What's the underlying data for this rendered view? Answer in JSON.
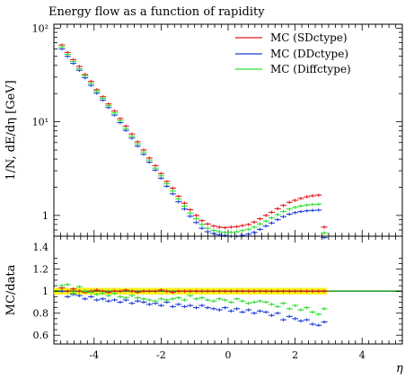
{
  "chart_data": [
    {
      "type": "scatter",
      "title": "Energy flow as a function of rapidity",
      "xlabel": "",
      "ylabel": "1/N, dE/dη [GeV]",
      "xlim": [
        -5.2,
        5.2
      ],
      "ylim": [
        0.6,
        110
      ],
      "yscale": "log",
      "yticks": [
        {
          "value": 1,
          "label": "1"
        },
        {
          "value": 10,
          "label": "10¹"
        },
        {
          "value": 100,
          "label": "10²"
        }
      ],
      "legend_position": "top-right",
      "x": [
        -4.96,
        -4.79,
        -4.62,
        -4.44,
        -4.27,
        -4.09,
        -3.92,
        -3.74,
        -3.57,
        -3.39,
        -3.22,
        -3.05,
        -2.87,
        -2.7,
        -2.52,
        -2.35,
        -2.17,
        -2.0,
        -1.83,
        -1.65,
        -1.48,
        -1.3,
        -1.13,
        -0.95,
        -0.78,
        -0.61,
        -0.43,
        -0.26,
        -0.09,
        0.09,
        0.26,
        0.43,
        0.61,
        0.78,
        0.95,
        1.13,
        1.3,
        1.48,
        1.65,
        1.83,
        2.0,
        2.17,
        2.35,
        2.52,
        2.7,
        2.87
      ],
      "series": [
        {
          "name": "MC (SDctype)",
          "color": "#e41a1c",
          "values": [
            66,
            55,
            46,
            39,
            32,
            27,
            22,
            18.5,
            15.5,
            13,
            10.8,
            9.0,
            7.4,
            6.1,
            5.0,
            4.1,
            3.4,
            2.8,
            2.3,
            1.95,
            1.6,
            1.35,
            1.15,
            1.0,
            0.88,
            0.81,
            0.77,
            0.75,
            0.74,
            0.75,
            0.76,
            0.78,
            0.8,
            0.85,
            0.92,
            1.0,
            1.08,
            1.18,
            1.28,
            1.38,
            1.45,
            1.52,
            1.58,
            1.62,
            1.65,
            0.75
          ]
        },
        {
          "name": "MC (DDctype)",
          "color": "#1f3fd6",
          "values": [
            60,
            50,
            42,
            35.5,
            29.5,
            24.5,
            20.2,
            17,
            14.2,
            11.8,
            9.8,
            8.1,
            6.7,
            5.5,
            4.5,
            3.7,
            3.05,
            2.5,
            2.05,
            1.7,
            1.4,
            1.17,
            0.98,
            0.84,
            0.73,
            0.67,
            0.64,
            0.62,
            0.61,
            0.6,
            0.6,
            0.61,
            0.63,
            0.66,
            0.71,
            0.77,
            0.83,
            0.9,
            0.97,
            1.03,
            1.07,
            1.1,
            1.12,
            1.13,
            1.14,
            0.58
          ]
        },
        {
          "name": "MC (Diffctype)",
          "color": "#33dd33",
          "values": [
            63,
            52.5,
            44,
            37,
            31,
            25.8,
            21.2,
            17.8,
            14.9,
            12.4,
            10.3,
            8.5,
            7.0,
            5.8,
            4.75,
            3.9,
            3.2,
            2.65,
            2.18,
            1.82,
            1.5,
            1.26,
            1.06,
            0.92,
            0.8,
            0.73,
            0.69,
            0.67,
            0.66,
            0.66,
            0.67,
            0.69,
            0.71,
            0.75,
            0.81,
            0.87,
            0.94,
            1.02,
            1.1,
            1.17,
            1.22,
            1.26,
            1.29,
            1.31,
            1.32,
            0.65
          ]
        }
      ]
    },
    {
      "type": "scatter",
      "xlabel": "η",
      "ylabel": "MC/data",
      "xlim": [
        -5.2,
        5.2
      ],
      "ylim": [
        0.52,
        1.5
      ],
      "xticks": [
        {
          "value": -4,
          "label": "-4"
        },
        {
          "value": -2,
          "label": "-2"
        },
        {
          "value": 0,
          "label": "0"
        },
        {
          "value": 2,
          "label": "2"
        },
        {
          "value": 4,
          "label": "4"
        }
      ],
      "yticks": [
        {
          "value": 0.6,
          "label": "0.6"
        },
        {
          "value": 0.8,
          "label": "0.8"
        },
        {
          "value": 1.0,
          "label": "1"
        },
        {
          "value": 1.2,
          "label": "1.2"
        },
        {
          "value": 1.4,
          "label": "1.4"
        }
      ],
      "reference_line": 1.0,
      "reference_color": "#2ca02c",
      "band_color": "#ffee00",
      "band_x_range": [
        -5.2,
        2.95
      ],
      "x": [
        -4.96,
        -4.79,
        -4.62,
        -4.44,
        -4.27,
        -4.09,
        -3.92,
        -3.74,
        -3.57,
        -3.39,
        -3.22,
        -3.05,
        -2.87,
        -2.7,
        -2.52,
        -2.35,
        -2.17,
        -2.0,
        -1.83,
        -1.65,
        -1.48,
        -1.3,
        -1.13,
        -0.95,
        -0.78,
        -0.61,
        -0.43,
        -0.26,
        -0.09,
        0.09,
        0.26,
        0.43,
        0.61,
        0.78,
        0.95,
        1.13,
        1.3,
        1.48,
        1.65,
        1.83,
        2.0,
        2.17,
        2.35,
        2.52,
        2.7,
        2.87
      ],
      "series": [
        {
          "name": "MC (SDctype)",
          "color": "#e41a1c",
          "values": [
            1.03,
            1.0,
            1.02,
            1.0,
            0.99,
            1.0,
            1.01,
            1.0,
            0.99,
            1.0,
            1.0,
            1.01,
            1.0,
            0.99,
            1.0,
            1.0,
            1.0,
            1.01,
            1.0,
            0.99,
            1.0,
            1.0,
            1.0,
            1.0,
            1.0,
            1.0,
            1.0,
            1.0,
            1.0,
            1.0,
            1.0,
            1.0,
            1.0,
            1.0,
            1.0,
            1.0,
            1.0,
            1.0,
            1.0,
            1.0,
            1.0,
            1.0,
            1.0,
            1.0,
            1.0,
            1.0
          ]
        },
        {
          "name": "MC (DDctype)",
          "color": "#1f3fd6",
          "values": [
            1.0,
            0.95,
            0.97,
            0.96,
            0.93,
            0.95,
            0.92,
            0.93,
            0.91,
            0.92,
            0.9,
            0.92,
            0.89,
            0.91,
            0.9,
            0.88,
            0.89,
            0.87,
            0.9,
            0.86,
            0.88,
            0.86,
            0.87,
            0.85,
            0.87,
            0.85,
            0.84,
            0.83,
            0.85,
            0.82,
            0.84,
            0.81,
            0.83,
            0.8,
            0.82,
            0.81,
            0.78,
            0.8,
            0.74,
            0.77,
            0.75,
            0.73,
            0.74,
            0.7,
            0.69,
            0.72
          ]
        },
        {
          "name": "MC (Diffctype)",
          "color": "#33dd33",
          "values": [
            1.05,
            1.06,
            0.98,
            1.04,
            1.0,
            0.99,
            0.97,
            0.98,
            0.96,
            0.98,
            0.95,
            0.94,
            0.96,
            0.94,
            0.93,
            0.92,
            0.91,
            0.93,
            0.92,
            0.93,
            0.94,
            0.92,
            0.96,
            0.93,
            0.94,
            0.92,
            0.91,
            0.93,
            0.92,
            0.9,
            0.93,
            0.91,
            0.89,
            0.9,
            0.91,
            0.9,
            0.88,
            0.86,
            0.89,
            0.84,
            0.87,
            0.83,
            0.85,
            0.81,
            0.79,
            0.84
          ]
        }
      ]
    }
  ]
}
